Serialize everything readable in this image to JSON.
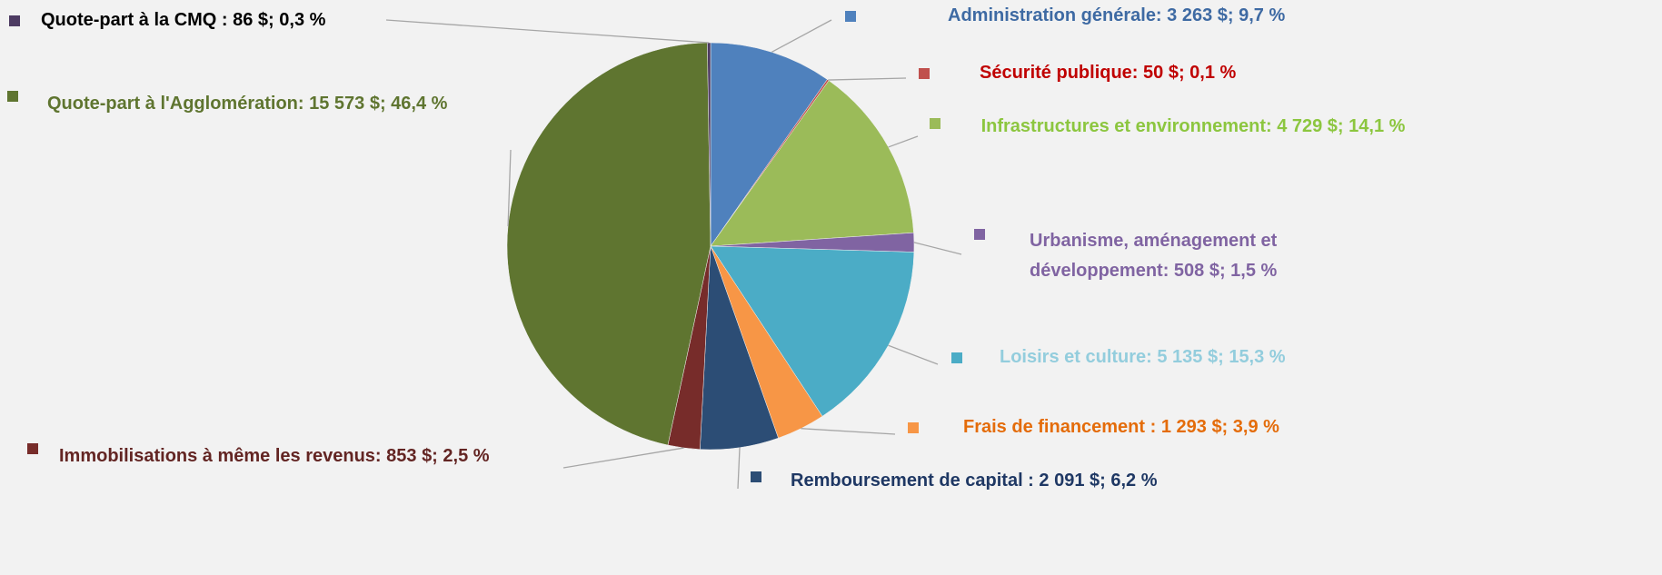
{
  "chart_data": {
    "type": "pie",
    "values": [
      3263,
      50,
      4729,
      508,
      5135,
      1293,
      2091,
      853,
      15573,
      86
    ],
    "value_labels": [
      "Administration générale: 3 263 $; 9,7 %",
      "Sécurité publique: 50 $; 0,1 %",
      "Infrastructures et environnement: 4 729 $; 14,1 %",
      "Urbanisme, aménagement et développement: 508 $; 1,5 %",
      "Loisirs et culture: 5 135 $; 15,3 %",
      "Frais de financement : 1 293 $; 3,9 %",
      "Remboursement de capital : 2 091 $; 6,2 %",
      "Immobilisations à même les revenus: 853 $; 2,5 %",
      "Quote-part à l'Agglomération: 15 573 $; 46,4 %",
      "Quote-part à la CMQ : 86 $; 0,3 %"
    ],
    "colors": [
      "#4f81bd",
      "#c0504d",
      "#9bbb59",
      "#8064a2",
      "#4bacc6",
      "#f79646",
      "#2c4d75",
      "#772c2a",
      "#5f7530",
      "#4d3b62"
    ],
    "label_colors": [
      "#3e6aa3",
      "#c00000",
      "#8cc63f",
      "#8064a2",
      "#93cddd",
      "#e46c0a",
      "#1f3864",
      "#632523",
      "#5f7530",
      "#000000"
    ]
  }
}
